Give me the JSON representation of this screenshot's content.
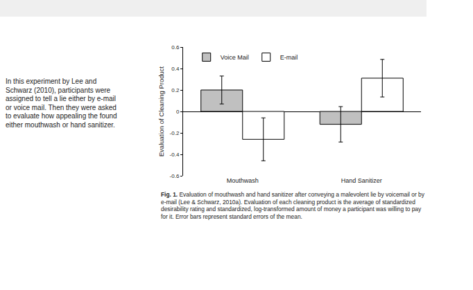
{
  "side_text": "In this experiment by Lee and Schwarz (2010), participants were assigned to tell a lie either by e-mail or voice mail. Then they were asked to evaluate how appealing the found either mouthwash or hand sanitizer.",
  "caption": {
    "label": "Fig. 1.",
    "text": "Evaluation of mouthwash and hand sanitizer after conveying a malevolent lie by voicemail or by e-mail (Lee & Schwarz, 2010a). Evaluation of each cleaning product is the average of standardized desirability rating and standardized, log-transformed amount of money a participant was willing to pay for it. Error bars represent standard errors of the mean."
  },
  "chart_data": {
    "type": "bar",
    "y_label": "Evaluation of Cleaning Product",
    "categories": [
      "Mouthwash",
      "Hand Sanitizer"
    ],
    "series": [
      {
        "name": "Voice Mail",
        "color": "#c0c0c0",
        "values": [
          0.2,
          -0.12
        ],
        "errors": [
          0.13,
          0.165
        ]
      },
      {
        "name": "E-mail",
        "color": "#ffffff",
        "values": [
          -0.26,
          0.31
        ],
        "errors": [
          0.2,
          0.175
        ]
      }
    ],
    "ylim": [
      -0.6,
      0.6
    ],
    "yticks": [
      -0.6,
      -0.4,
      -0.2,
      0,
      0.2,
      0.4,
      0.6
    ],
    "grid": false,
    "legend": "top left"
  }
}
